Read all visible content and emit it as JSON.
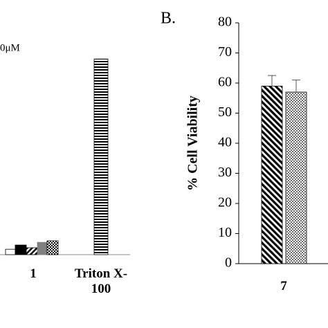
{
  "chart_data": [
    {
      "type": "bar",
      "legend_text": "0μM",
      "categories": [
        "1",
        "Triton X-100"
      ],
      "series": [
        {
          "color": "#ffffff",
          "values": [
            1.8,
            null
          ]
        },
        {
          "color": "#000000",
          "values": [
            3.2,
            null
          ]
        },
        {
          "color": "#000000",
          "values": [
            2.3,
            null
          ]
        },
        {
          "color": "#808080",
          "values": [
            4.1,
            null
          ]
        },
        {
          "color": "#000000",
          "values": [
            4.6,
            null
          ]
        },
        {
          "color": "#000000",
          "values": [
            null,
            65
          ]
        }
      ]
    },
    {
      "type": "bar",
      "title": "B.",
      "ylabel": "% Cell Viability",
      "categories": [
        "7"
      ],
      "series": [
        {
          "color": "#000000",
          "values": [
            59
          ],
          "errors": [
            3.5
          ]
        },
        {
          "color": "#000000",
          "values": [
            57
          ],
          "errors": [
            4
          ]
        }
      ],
      "ylim": [
        0,
        80
      ],
      "yticks": [
        0,
        10,
        20,
        30,
        40,
        50,
        60,
        70,
        80
      ]
    }
  ]
}
